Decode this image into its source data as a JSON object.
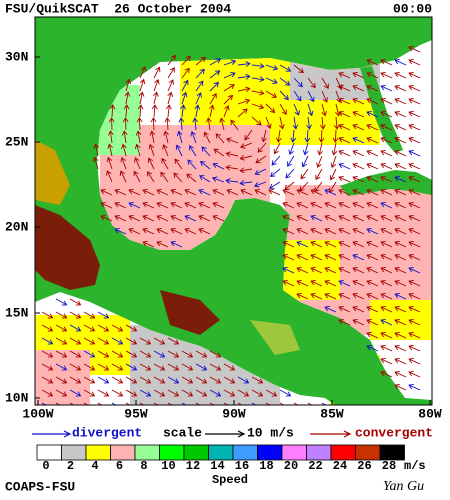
{
  "header": {
    "title": "FSU/QuikSCAT  26 October 2004",
    "time": "00:00"
  },
  "map": {
    "lat_labels": [
      "30N",
      "25N",
      "20N",
      "15N",
      "10N"
    ],
    "lon_labels": [
      "100W",
      "95W",
      "90W",
      "85W",
      "80W"
    ]
  },
  "legend": {
    "divergent": "divergent",
    "scale": "scale",
    "scale_value": "10 m/s",
    "convergent": "convergent",
    "divergent_color": "#1010c8",
    "convergent_color": "#a80000"
  },
  "colorbar": {
    "ticks": [
      0,
      2,
      4,
      6,
      8,
      10,
      12,
      14,
      16,
      18,
      20,
      22,
      24,
      26,
      28
    ],
    "colors": [
      "#ffffff",
      "#c8c8c8",
      "#ffff00",
      "#ffb4b4",
      "#96ff96",
      "#00ff00",
      "#00c800",
      "#00b4b4",
      "#3c9cff",
      "#0000ff",
      "#ff80ff",
      "#c080ff",
      "#ff0000",
      "#c83200",
      "#000000"
    ],
    "unit": "m/s",
    "label": "Speed"
  },
  "footer": {
    "credit": "COAPS-FSU",
    "signature": "Yan Gu"
  }
}
